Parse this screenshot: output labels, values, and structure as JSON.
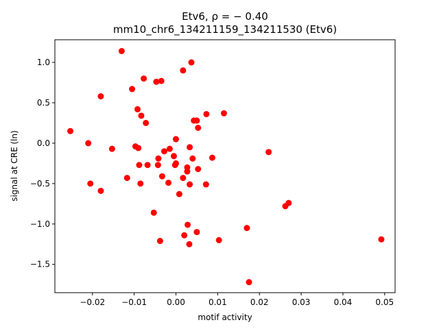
{
  "chart_data": {
    "type": "scatter",
    "title": "Etv6, ρ = − 0.40",
    "subtitle": "mm10_chr6_134211159_134211530 (Etv6)",
    "xlabel": "motif activity",
    "ylabel": "signal at CRE (ln)",
    "xlim": [
      -0.029,
      0.0525
    ],
    "ylim": [
      -1.85,
      1.28
    ],
    "xticks": [
      -0.02,
      -0.01,
      0.0,
      0.01,
      0.02,
      0.03,
      0.04,
      0.05
    ],
    "xtick_labels": [
      "−0.02",
      "−0.01",
      "0.00",
      "0.01",
      "0.02",
      "0.03",
      "0.04",
      "0.05"
    ],
    "yticks": [
      -1.5,
      -1.0,
      -0.5,
      0.0,
      0.5,
      1.0
    ],
    "ytick_labels": [
      "−1.5",
      "−1.0",
      "−0.5",
      "0.0",
      "0.5",
      "1.0"
    ],
    "grid": false,
    "marker_color": "#ff0000",
    "points": [
      {
        "x": -0.0253,
        "y": 0.15
      },
      {
        "x": -0.021,
        "y": 0.0
      },
      {
        "x": -0.0205,
        "y": -0.5
      },
      {
        "x": -0.018,
        "y": 0.58
      },
      {
        "x": -0.018,
        "y": -0.59
      },
      {
        "x": -0.0153,
        "y": -0.07
      },
      {
        "x": -0.013,
        "y": 1.14
      },
      {
        "x": -0.0117,
        "y": -0.43
      },
      {
        "x": -0.0105,
        "y": 0.67
      },
      {
        "x": -0.0097,
        "y": -0.04
      },
      {
        "x": -0.0092,
        "y": 0.42
      },
      {
        "x": -0.009,
        "y": -0.06
      },
      {
        "x": -0.0088,
        "y": -0.27
      },
      {
        "x": -0.0085,
        "y": -0.5
      },
      {
        "x": -0.0083,
        "y": 0.34
      },
      {
        "x": -0.0077,
        "y": 0.8
      },
      {
        "x": -0.0072,
        "y": 0.25
      },
      {
        "x": -0.0068,
        "y": -0.27
      },
      {
        "x": -0.0053,
        "y": -0.86
      },
      {
        "x": -0.0047,
        "y": 0.76
      },
      {
        "x": -0.0043,
        "y": -0.27
      },
      {
        "x": -0.0042,
        "y": -0.19
      },
      {
        "x": -0.0038,
        "y": -1.21
      },
      {
        "x": -0.0035,
        "y": 0.77
      },
      {
        "x": -0.0033,
        "y": -0.41
      },
      {
        "x": -0.0028,
        "y": -0.1
      },
      {
        "x": -0.0018,
        "y": -0.49
      },
      {
        "x": -0.0015,
        "y": -0.07
      },
      {
        "x": -0.0005,
        "y": -0.16
      },
      {
        "x": -0.0002,
        "y": -0.27
      },
      {
        "x": 0.0,
        "y": -0.25
      },
      {
        "x": 0.0,
        "y": 0.05
      },
      {
        "x": 0.0008,
        "y": -0.63
      },
      {
        "x": 0.0017,
        "y": 0.9
      },
      {
        "x": 0.0017,
        "y": -0.43
      },
      {
        "x": 0.002,
        "y": -1.14
      },
      {
        "x": 0.0027,
        "y": -0.35
      },
      {
        "x": 0.0027,
        "y": -0.3
      },
      {
        "x": 0.0028,
        "y": -1.01
      },
      {
        "x": 0.0032,
        "y": -1.25
      },
      {
        "x": 0.0033,
        "y": -0.05
      },
      {
        "x": 0.0033,
        "y": -0.51
      },
      {
        "x": 0.0037,
        "y": 1.0
      },
      {
        "x": 0.004,
        "y": -0.19
      },
      {
        "x": 0.0043,
        "y": 0.28
      },
      {
        "x": 0.005,
        "y": 0.28
      },
      {
        "x": 0.005,
        "y": -1.1
      },
      {
        "x": 0.0053,
        "y": 0.19
      },
      {
        "x": 0.0053,
        "y": -0.32
      },
      {
        "x": 0.0072,
        "y": -0.51
      },
      {
        "x": 0.0073,
        "y": 0.36
      },
      {
        "x": 0.0087,
        "y": -0.18
      },
      {
        "x": 0.0103,
        "y": -1.2
      },
      {
        "x": 0.0115,
        "y": 0.37
      },
      {
        "x": 0.017,
        "y": -1.05
      },
      {
        "x": 0.0175,
        "y": -1.72
      },
      {
        "x": 0.0222,
        "y": -0.11
      },
      {
        "x": 0.0262,
        "y": -0.78
      },
      {
        "x": 0.027,
        "y": -0.74
      },
      {
        "x": 0.0492,
        "y": -1.19
      }
    ]
  }
}
